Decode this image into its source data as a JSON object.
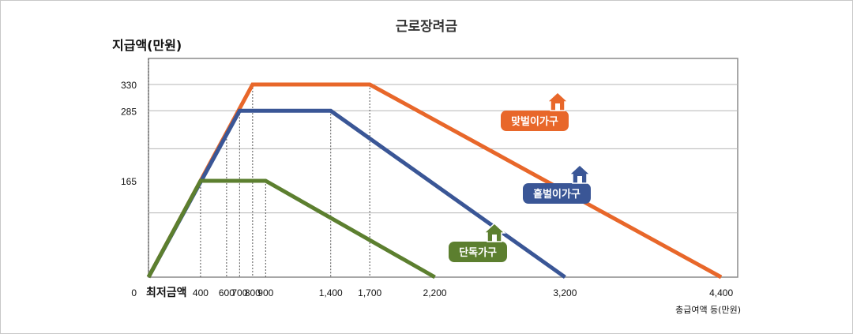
{
  "chart_data": {
    "type": "line",
    "title": "근로장려금",
    "ylabel": "지급액(만원)",
    "xlabel": "총급여액 등(만원)",
    "min_label": "최저금액",
    "y_ticks": [
      {
        "label": "0",
        "value": 0
      },
      {
        "label": "165",
        "value": 165
      },
      {
        "label": "285",
        "value": 285
      },
      {
        "label": "330",
        "value": 330
      }
    ],
    "x_ticks": [
      {
        "label": "400",
        "value": 400
      },
      {
        "label": "600",
        "value": 600
      },
      {
        "label": "700",
        "value": 700
      },
      {
        "label": "800",
        "value": 800
      },
      {
        "label": "900",
        "value": 900
      },
      {
        "label": "1,400",
        "value": 1400
      },
      {
        "label": "1,700",
        "value": 1700
      },
      {
        "label": "2,200",
        "value": 2200
      },
      {
        "label": "3,200",
        "value": 3200
      },
      {
        "label": "4,400",
        "value": 4400
      }
    ],
    "grid": true,
    "series": [
      {
        "name": "맞벌이가구",
        "color": "#e8672a",
        "points": [
          [
            0,
            0
          ],
          [
            800,
            330
          ],
          [
            1700,
            330
          ],
          [
            4400,
            0
          ]
        ]
      },
      {
        "name": "홑벌이가구",
        "color": "#3a5696",
        "points": [
          [
            0,
            0
          ],
          [
            700,
            285
          ],
          [
            1400,
            285
          ],
          [
            3200,
            0
          ]
        ]
      },
      {
        "name": "단독가구",
        "color": "#5c7f2f",
        "points": [
          [
            0,
            0
          ],
          [
            400,
            165
          ],
          [
            900,
            165
          ],
          [
            2200,
            0
          ]
        ]
      }
    ]
  }
}
